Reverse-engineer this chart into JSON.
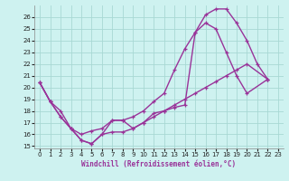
{
  "xlabel": "Windchill (Refroidissement éolien,°C)",
  "xlim": [
    -0.5,
    23.5
  ],
  "ylim": [
    14.8,
    27.0
  ],
  "yticks": [
    15,
    16,
    17,
    18,
    19,
    20,
    21,
    22,
    23,
    24,
    25,
    26
  ],
  "xticks": [
    0,
    1,
    2,
    3,
    4,
    5,
    6,
    7,
    8,
    9,
    10,
    11,
    12,
    13,
    14,
    15,
    16,
    17,
    18,
    19,
    20,
    21,
    22,
    23
  ],
  "bg_color": "#cef2f0",
  "grid_color": "#a8d8d4",
  "line_color": "#993399",
  "series1_x": [
    0,
    1,
    2,
    3,
    4,
    5,
    6,
    7,
    8,
    9,
    10,
    11,
    12,
    13,
    14,
    15,
    16,
    17,
    18,
    19,
    20,
    21,
    22
  ],
  "series1_y": [
    20.4,
    18.8,
    18.0,
    16.5,
    15.5,
    15.2,
    16.0,
    17.2,
    17.2,
    16.5,
    17.0,
    17.8,
    18.0,
    18.3,
    18.5,
    24.7,
    26.2,
    26.7,
    26.7,
    25.5,
    24.0,
    22.0,
    20.7
  ],
  "series2_x": [
    0,
    1,
    2,
    3,
    4,
    5,
    6,
    7,
    8,
    9,
    10,
    11,
    12,
    13,
    14,
    15,
    16,
    17,
    18,
    19,
    20,
    22
  ],
  "series2_y": [
    20.4,
    18.8,
    17.5,
    16.5,
    16.0,
    16.3,
    16.5,
    17.2,
    17.2,
    17.5,
    18.0,
    18.8,
    19.5,
    21.5,
    23.3,
    24.7,
    25.5,
    25.0,
    23.0,
    21.0,
    19.5,
    20.7
  ],
  "series3_x": [
    0,
    1,
    2,
    3,
    4,
    5,
    6,
    7,
    8,
    9,
    10,
    11,
    12,
    13,
    14,
    15,
    16,
    17,
    18,
    19,
    20,
    22
  ],
  "series3_y": [
    20.4,
    18.8,
    17.5,
    16.5,
    15.5,
    15.2,
    16.0,
    16.2,
    16.2,
    16.5,
    17.0,
    17.5,
    18.0,
    18.5,
    19.0,
    19.5,
    20.0,
    20.5,
    21.0,
    21.5,
    22.0,
    20.7
  ]
}
